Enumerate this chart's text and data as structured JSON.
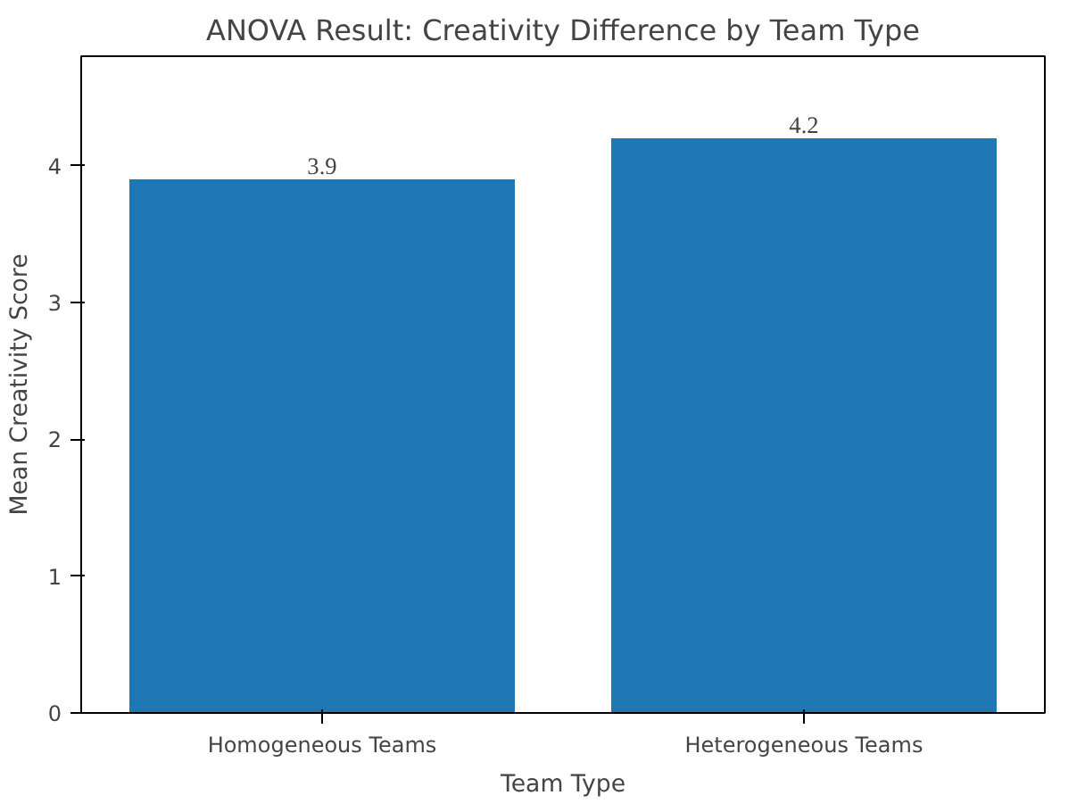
{
  "chart_data": {
    "type": "bar",
    "title": "ANOVA Result: Creativity Difference by Team Type",
    "xlabel": "Team Type",
    "ylabel": "Mean Creativity Score",
    "categories": [
      "Homogeneous Teams",
      "Heterogeneous Teams"
    ],
    "values": [
      3.9,
      4.2
    ],
    "color": "#1f77b4",
    "ylim": [
      0,
      4.8
    ],
    "yticks": [
      0,
      1,
      2,
      3,
      4
    ],
    "grid": false,
    "data_labels": true
  }
}
